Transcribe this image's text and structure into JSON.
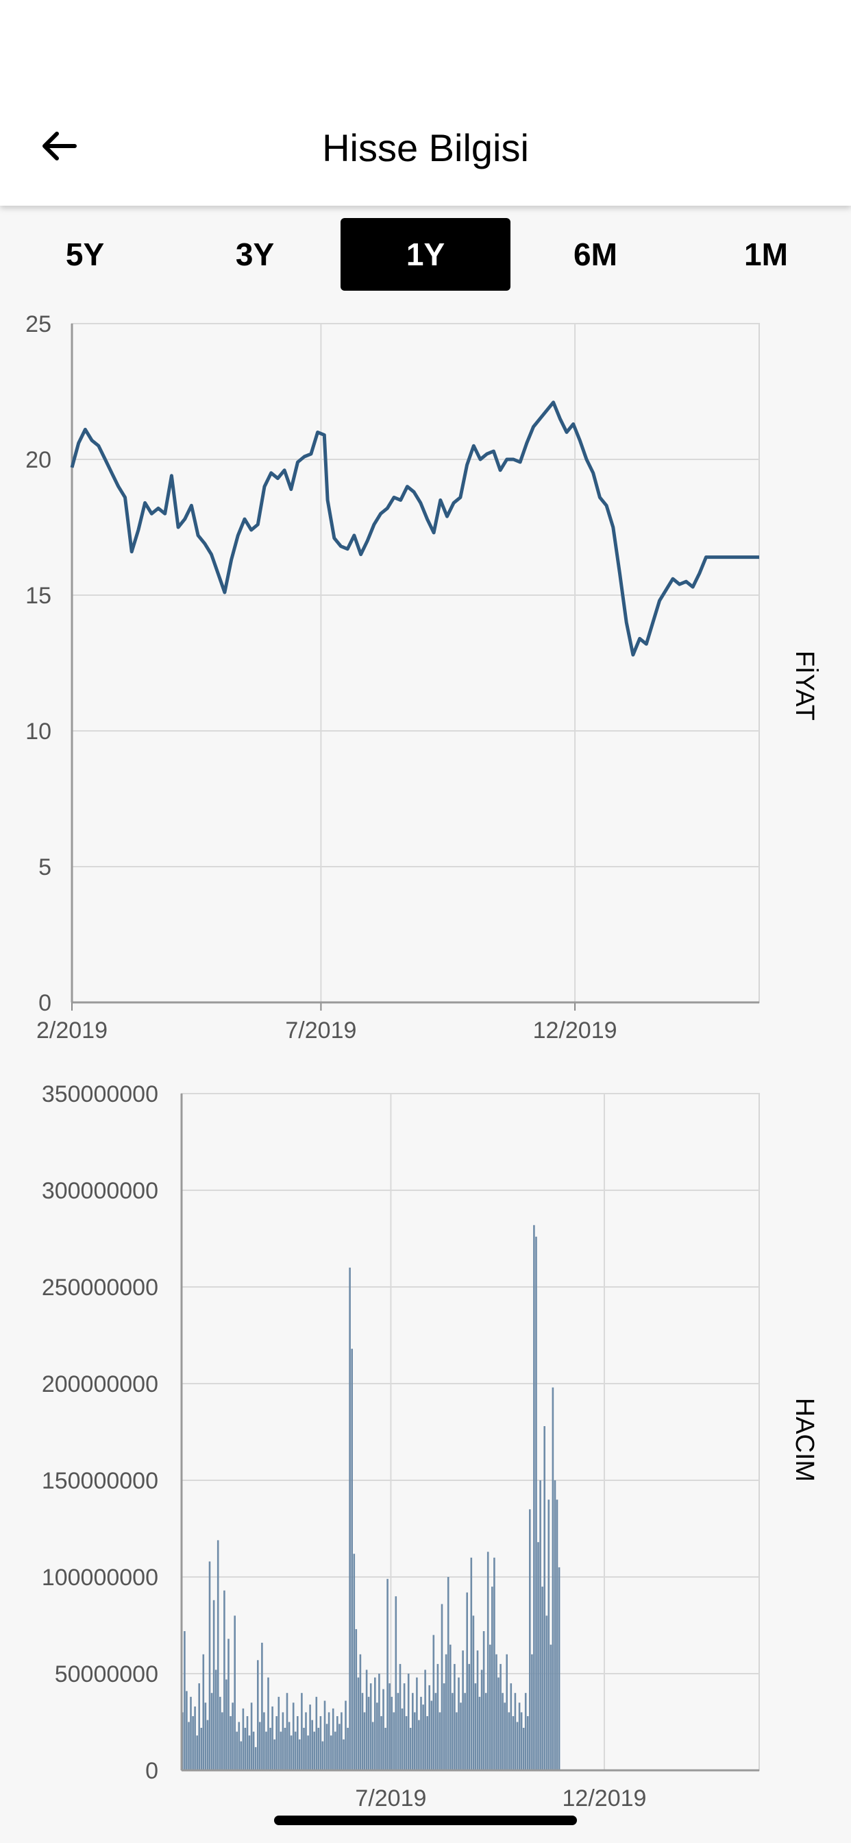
{
  "header": {
    "title": "Hisse Bilgisi",
    "back_icon": "arrow-left-icon"
  },
  "tabs": [
    {
      "label": "5Y",
      "active": false
    },
    {
      "label": "3Y",
      "active": false
    },
    {
      "label": "1Y",
      "active": true
    },
    {
      "label": "6M",
      "active": false
    },
    {
      "label": "1M",
      "active": false
    }
  ],
  "colors": {
    "price_line": "#2f5a80",
    "volume_bar": "#6f8ca8",
    "active_tab_bg": "#000000"
  },
  "chart_data": [
    {
      "type": "line",
      "title": "",
      "ylabel": "FİYAT",
      "xlabel": "",
      "x_tick_labels": [
        "2/2019",
        "7/2019",
        "12/2019"
      ],
      "y_tick_labels": [
        "0",
        "5",
        "10",
        "15",
        "20",
        "25"
      ],
      "ylim": [
        0,
        25
      ],
      "xlim": [
        "2019-02-01",
        "2020-03-21"
      ],
      "grid": true,
      "series": [
        {
          "x": [
            "2019-02-01",
            "2019-02-05",
            "2019-02-09",
            "2019-02-13",
            "2019-02-17",
            "2019-02-21",
            "2019-02-25",
            "2019-03-01",
            "2019-03-05",
            "2019-03-09",
            "2019-03-13",
            "2019-03-17",
            "2019-03-21",
            "2019-03-25",
            "2019-03-29",
            "2019-04-02",
            "2019-04-06",
            "2019-04-10",
            "2019-04-14",
            "2019-04-18",
            "2019-04-22",
            "2019-04-26",
            "2019-04-30",
            "2019-05-04",
            "2019-05-08",
            "2019-05-12",
            "2019-05-16",
            "2019-05-20",
            "2019-05-24",
            "2019-05-28",
            "2019-06-01",
            "2019-06-05",
            "2019-06-09",
            "2019-06-13",
            "2019-06-17",
            "2019-06-21",
            "2019-06-25",
            "2019-06-29",
            "2019-07-03",
            "2019-07-05",
            "2019-07-09",
            "2019-07-13",
            "2019-07-17",
            "2019-07-21",
            "2019-07-25",
            "2019-07-29",
            "2019-08-02",
            "2019-08-06",
            "2019-08-10",
            "2019-08-14",
            "2019-08-18",
            "2019-08-22",
            "2019-08-26",
            "2019-08-30",
            "2019-09-03",
            "2019-09-07",
            "2019-09-11",
            "2019-09-15",
            "2019-09-19",
            "2019-09-23",
            "2019-09-27",
            "2019-10-01",
            "2019-10-05",
            "2019-10-09",
            "2019-10-13",
            "2019-10-17",
            "2019-10-21",
            "2019-10-25",
            "2019-10-29",
            "2019-11-02",
            "2019-11-06",
            "2019-11-10",
            "2019-11-14",
            "2019-11-18",
            "2019-11-22",
            "2019-11-26",
            "2019-11-30",
            "2019-12-04",
            "2019-12-08",
            "2019-12-12",
            "2019-12-16",
            "2019-12-20",
            "2019-12-24",
            "2019-12-28",
            "2020-01-01",
            "2020-01-05",
            "2020-01-09",
            "2020-01-13",
            "2020-01-17",
            "2020-01-21",
            "2020-01-25",
            "2020-01-29",
            "2020-02-02",
            "2020-02-06",
            "2020-02-10",
            "2020-02-14",
            "2020-02-18",
            "2020-02-22",
            "2020-02-26",
            "2020-03-01",
            "2020-03-05",
            "2020-03-09",
            "2020-03-13",
            "2020-03-17",
            "2020-03-21"
          ],
          "values": [
            19.7,
            20.6,
            21.1,
            20.7,
            20.5,
            20.0,
            19.5,
            19.0,
            18.6,
            16.6,
            17.4,
            18.4,
            18.0,
            18.2,
            18.0,
            19.4,
            17.5,
            17.8,
            18.3,
            17.2,
            16.9,
            16.5,
            15.8,
            15.1,
            16.3,
            17.2,
            17.8,
            17.4,
            17.6,
            19.0,
            19.5,
            19.3,
            19.6,
            18.9,
            19.9,
            20.1,
            20.2,
            21.0,
            20.9,
            18.5,
            17.1,
            16.8,
            16.7,
            17.2,
            16.5,
            17.0,
            17.6,
            18.0,
            18.2,
            18.6,
            18.5,
            19.0,
            18.8,
            18.4,
            17.8,
            17.3,
            18.5,
            17.9,
            18.4,
            18.6,
            19.8,
            20.5,
            20.0,
            20.2,
            20.3,
            19.6,
            20.0,
            20.0,
            19.9,
            20.6,
            21.2,
            21.5,
            21.8,
            22.1,
            21.5,
            21.0,
            21.3,
            20.7,
            20.0,
            19.5,
            18.6,
            18.3,
            17.5,
            15.8,
            14.0,
            12.8,
            13.4,
            13.2,
            14.0,
            14.8,
            15.2,
            15.6,
            15.4,
            15.5,
            15.3,
            15.8,
            16.4,
            16.4,
            16.4,
            16.4,
            16.4,
            16.4,
            16.4,
            16.4,
            16.4
          ]
        }
      ]
    },
    {
      "type": "bar",
      "title": "",
      "ylabel": "HACIM",
      "xlabel": "",
      "x_tick_labels": [
        "7/2019",
        "12/2019"
      ],
      "y_tick_labels": [
        "0",
        "50000000",
        "100000000",
        "150000000",
        "200000000",
        "250000000",
        "300000000",
        "350000000"
      ],
      "ylim": [
        0,
        350000000
      ],
      "xlim": [
        "2019-02-01",
        "2020-03-21"
      ],
      "grid": true,
      "series": [
        {
          "x_start": "2019-02-01",
          "x_step_days": 1.5,
          "values": [
            30000000,
            72000000,
            41000000,
            25000000,
            38000000,
            28000000,
            33000000,
            18000000,
            45000000,
            22000000,
            60000000,
            35000000,
            26000000,
            108000000,
            40000000,
            88000000,
            52000000,
            119000000,
            38000000,
            30000000,
            93000000,
            47000000,
            68000000,
            28000000,
            35000000,
            80000000,
            20000000,
            25000000,
            15000000,
            32000000,
            22000000,
            28000000,
            18000000,
            35000000,
            20000000,
            12000000,
            57000000,
            25000000,
            66000000,
            30000000,
            20000000,
            48000000,
            22000000,
            33000000,
            16000000,
            28000000,
            38000000,
            20000000,
            30000000,
            22000000,
            40000000,
            25000000,
            18000000,
            35000000,
            20000000,
            28000000,
            16000000,
            40000000,
            22000000,
            30000000,
            18000000,
            34000000,
            26000000,
            20000000,
            38000000,
            22000000,
            28000000,
            15000000,
            36000000,
            24000000,
            30000000,
            18000000,
            32000000,
            20000000,
            28000000,
            24000000,
            30000000,
            16000000,
            36000000,
            22000000,
            260000000,
            218000000,
            112000000,
            73000000,
            48000000,
            60000000,
            40000000,
            30000000,
            52000000,
            38000000,
            45000000,
            25000000,
            48000000,
            35000000,
            50000000,
            28000000,
            42000000,
            22000000,
            99000000,
            45000000,
            38000000,
            30000000,
            90000000,
            40000000,
            55000000,
            32000000,
            45000000,
            28000000,
            50000000,
            22000000,
            40000000,
            30000000,
            48000000,
            26000000,
            38000000,
            34000000,
            52000000,
            28000000,
            44000000,
            36000000,
            70000000,
            40000000,
            55000000,
            30000000,
            86000000,
            45000000,
            60000000,
            100000000,
            65000000,
            40000000,
            55000000,
            30000000,
            48000000,
            35000000,
            62000000,
            40000000,
            92000000,
            55000000,
            110000000,
            80000000,
            45000000,
            62000000,
            38000000,
            52000000,
            72000000,
            40000000,
            113000000,
            65000000,
            95000000,
            110000000,
            60000000,
            48000000,
            55000000,
            40000000,
            35000000,
            60000000,
            30000000,
            45000000,
            28000000,
            40000000,
            25000000,
            35000000,
            30000000,
            22000000,
            40000000,
            28000000,
            135000000,
            60000000,
            282000000,
            276000000,
            118000000,
            150000000,
            95000000,
            178000000,
            80000000,
            140000000,
            65000000,
            198000000,
            150000000,
            140000000,
            105000000
          ]
        }
      ]
    }
  ]
}
